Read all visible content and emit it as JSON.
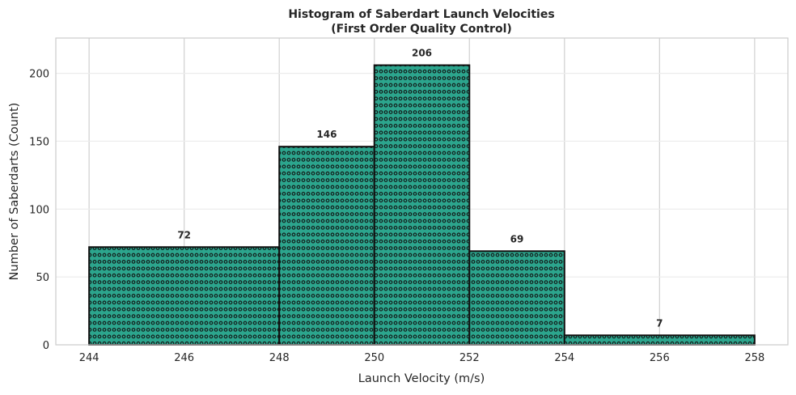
{
  "chart_data": {
    "type": "bar",
    "title": "Histogram of Saberdart Launch Velocities",
    "subtitle": "(First Order Quality Control)",
    "xlabel": "Launch Velocity (m/s)",
    "ylabel": "Number of Saberdarts (Count)",
    "bins": [
      {
        "start": 244,
        "end": 248,
        "count": 72
      },
      {
        "start": 248,
        "end": 250,
        "count": 146
      },
      {
        "start": 250,
        "end": 252,
        "count": 206
      },
      {
        "start": 252,
        "end": 254,
        "count": 69
      },
      {
        "start": 254,
        "end": 258,
        "count": 7
      }
    ],
    "xlim": [
      243.3,
      258.7
    ],
    "ylim": [
      0,
      226
    ],
    "xticks": [
      244,
      246,
      248,
      250,
      252,
      254,
      256,
      258
    ],
    "yticks": [
      0,
      50,
      100,
      150,
      200
    ],
    "grid": true,
    "bar_color": "#2ca58d",
    "edge_color": "#111111",
    "hatch": "small circles"
  }
}
